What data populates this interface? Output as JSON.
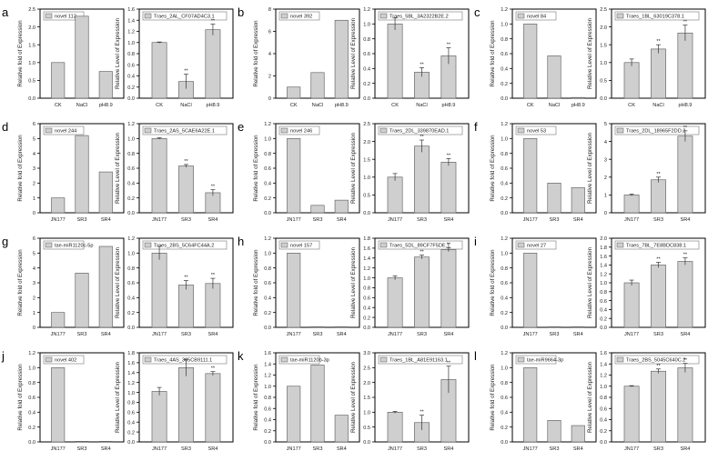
{
  "figure": {
    "panel_letters": [
      "a",
      "b",
      "c",
      "d",
      "e",
      "f",
      "g",
      "h",
      "i",
      "j",
      "k",
      "l"
    ],
    "ylabel_left": "Relative fold of Expression",
    "ylabel_right": "Relative Level of Expression"
  },
  "chart_data": [
    {
      "panel": "a",
      "side": "left",
      "type": "bar",
      "legend": "novel 112",
      "ylabel": "Relative fold of Expression",
      "categories": [
        "CK",
        "NaCl",
        "pH8.9"
      ],
      "values": [
        1.0,
        2.3,
        0.75
      ],
      "ylim": [
        0,
        2.5
      ],
      "yticks": [
        "0.0",
        "0.5",
        "1.0",
        "1.5",
        "2.0",
        "2.5"
      ],
      "errors": [
        0,
        0,
        0
      ],
      "sig": [
        "",
        "",
        ""
      ]
    },
    {
      "panel": "a",
      "side": "right",
      "type": "bar",
      "legend": "Traes_2AL_CF07AD4C3.1",
      "ylabel": "Relative Level of Expression",
      "categories": [
        "CK",
        "NaCl",
        "pH8.9"
      ],
      "values": [
        1.0,
        0.3,
        1.23
      ],
      "ylim": [
        0,
        1.6
      ],
      "yticks": [
        "0.0",
        "0.2",
        "0.4",
        "0.6",
        "0.8",
        "1.0",
        "1.2",
        "1.4",
        "1.6"
      ],
      "errors": [
        0.01,
        0.13,
        0.1
      ],
      "sig": [
        "",
        "**",
        "**"
      ]
    },
    {
      "panel": "b",
      "side": "left",
      "type": "bar",
      "legend": "novel 392",
      "ylabel": "Relative fold of Expression",
      "categories": [
        "CK",
        "NaCl",
        "pH8.9"
      ],
      "values": [
        1.0,
        2.3,
        7.0
      ],
      "ylim": [
        0,
        8
      ],
      "yticks": [
        "0",
        "2",
        "4",
        "6",
        "8"
      ],
      "errors": [
        0,
        0,
        0
      ],
      "sig": [
        "",
        "",
        ""
      ]
    },
    {
      "panel": "b",
      "side": "right",
      "type": "bar",
      "legend": "Traes_5BL_3A2322B2E.2",
      "ylabel": "Relative Level of Expression",
      "categories": [
        "CK",
        "NaCl",
        "pH8.9"
      ],
      "values": [
        1.0,
        0.35,
        0.57
      ],
      "ylim": [
        0,
        1.2
      ],
      "yticks": [
        "0.0",
        "0.2",
        "0.4",
        "0.6",
        "0.8",
        "1.0",
        "1.2"
      ],
      "errors": [
        0.08,
        0.06,
        0.11
      ],
      "sig": [
        "",
        "**",
        "**"
      ]
    },
    {
      "panel": "c",
      "side": "left",
      "type": "bar",
      "legend": "novel 84",
      "ylabel": "Relative fold of Expression",
      "categories": [
        "CK",
        "NaCl",
        "pH8.9"
      ],
      "values": [
        1.0,
        0.57,
        0.01
      ],
      "ylim": [
        0,
        1.2
      ],
      "yticks": [
        "0.0",
        "0.2",
        "0.4",
        "0.6",
        "0.8",
        "1.0",
        "1.2"
      ],
      "errors": [
        0,
        0,
        0
      ],
      "sig": [
        "",
        "",
        ""
      ]
    },
    {
      "panel": "c",
      "side": "right",
      "type": "bar",
      "legend": "Traes_1BL_63019C378.1",
      "ylabel": "Relative Level of Expression",
      "categories": [
        "CK",
        "NaCl",
        "pH8.9"
      ],
      "values": [
        1.0,
        1.38,
        1.83
      ],
      "ylim": [
        0,
        2.5
      ],
      "yticks": [
        "0.0",
        "0.5",
        "1.0",
        "1.5",
        "2.0",
        "2.5"
      ],
      "errors": [
        0.1,
        0.12,
        0.22
      ],
      "sig": [
        "",
        "**",
        "**"
      ]
    },
    {
      "panel": "d",
      "side": "left",
      "type": "bar",
      "legend": "novel 244",
      "ylabel": "Relative fold of Expression",
      "categories": [
        "JN177",
        "SR3",
        "SR4"
      ],
      "values": [
        1.0,
        5.2,
        2.75
      ],
      "ylim": [
        0,
        6
      ],
      "yticks": [
        "0",
        "1",
        "2",
        "3",
        "4",
        "5",
        "6"
      ],
      "errors": [
        0,
        0,
        0
      ],
      "sig": [
        "",
        "",
        ""
      ]
    },
    {
      "panel": "d",
      "side": "right",
      "type": "bar",
      "legend": "Traes_2AS_5CAE6A22E.1",
      "ylabel": "Relative Level of Expression",
      "categories": [
        "JN177",
        "SR3",
        "SR4"
      ],
      "values": [
        1.0,
        0.63,
        0.27
      ],
      "ylim": [
        0,
        1.2
      ],
      "yticks": [
        "0.0",
        "0.2",
        "0.4",
        "0.6",
        "0.8",
        "1.0",
        "1.2"
      ],
      "errors": [
        0.01,
        0.02,
        0.04
      ],
      "sig": [
        "",
        "**",
        "**"
      ]
    },
    {
      "panel": "e",
      "side": "left",
      "type": "bar",
      "legend": "novel 246",
      "ylabel": "Relative fold of Expression",
      "categories": [
        "JN177",
        "SR3",
        "SR4"
      ],
      "values": [
        1.0,
        0.1,
        0.17
      ],
      "ylim": [
        0,
        1.2
      ],
      "yticks": [
        "0.0",
        "0.2",
        "0.4",
        "0.6",
        "0.8",
        "1.0",
        "1.2"
      ],
      "errors": [
        0,
        0,
        0
      ],
      "sig": [
        "",
        "",
        ""
      ]
    },
    {
      "panel": "e",
      "side": "right",
      "type": "bar",
      "legend": "Traes_2DL_339870EAD.1",
      "ylabel": "Relative Level of Expression",
      "categories": [
        "JN177",
        "SR3",
        "SR4"
      ],
      "values": [
        1.0,
        1.87,
        1.42
      ],
      "ylim": [
        0,
        2.5
      ],
      "yticks": [
        "0.0",
        "0.5",
        "1.0",
        "1.5",
        "2.0",
        "2.5"
      ],
      "errors": [
        0.1,
        0.17,
        0.1
      ],
      "sig": [
        "",
        "**",
        "**"
      ]
    },
    {
      "panel": "f",
      "side": "left",
      "type": "bar",
      "legend": "novel 53",
      "ylabel": "Relative fold of Expression",
      "categories": [
        "JN177",
        "SR3",
        "SR4"
      ],
      "values": [
        1.0,
        0.4,
        0.34
      ],
      "ylim": [
        0,
        1.2
      ],
      "yticks": [
        "0.0",
        "0.2",
        "0.4",
        "0.6",
        "0.8",
        "1.0",
        "1.2"
      ],
      "errors": [
        0,
        0,
        0
      ],
      "sig": [
        "",
        "",
        ""
      ]
    },
    {
      "panel": "f",
      "side": "right",
      "type": "bar",
      "legend": "Traes_2DL_18965F2DD.2",
      "ylabel": "Relative Level of Expression",
      "categories": [
        "JN177",
        "SR3",
        "SR4"
      ],
      "values": [
        1.0,
        1.85,
        4.3
      ],
      "ylim": [
        0,
        5
      ],
      "yticks": [
        "0",
        "1",
        "2",
        "3",
        "4",
        "5"
      ],
      "errors": [
        0.05,
        0.15,
        0.3
      ],
      "sig": [
        "",
        "**",
        "**"
      ]
    },
    {
      "panel": "g",
      "side": "left",
      "type": "bar",
      "legend": "tae-miR1120c-5p",
      "ylabel": "Relative fold of Expression",
      "categories": [
        "JN177",
        "SR3",
        "SR4"
      ],
      "values": [
        1.0,
        3.65,
        5.45
      ],
      "ylim": [
        0,
        6
      ],
      "yticks": [
        "0",
        "1",
        "2",
        "3",
        "4",
        "5",
        "6"
      ],
      "errors": [
        0,
        0,
        0
      ],
      "sig": [
        "",
        "",
        ""
      ]
    },
    {
      "panel": "g",
      "side": "right",
      "type": "bar",
      "legend": "Traes_2BS_5C64FC44A.2",
      "ylabel": "Relative Level of Expression",
      "categories": [
        "JN177",
        "SR3",
        "SR4"
      ],
      "values": [
        1.0,
        0.57,
        0.59
      ],
      "ylim": [
        0,
        1.2
      ],
      "yticks": [
        "0.0",
        "0.2",
        "0.4",
        "0.6",
        "0.8",
        "1.0",
        "1.2"
      ],
      "errors": [
        0.09,
        0.06,
        0.07
      ],
      "sig": [
        "",
        "**",
        "**"
      ]
    },
    {
      "panel": "h",
      "side": "left",
      "type": "bar",
      "legend": "novel 157",
      "ylabel": "Relative fold of Expression",
      "categories": [
        "JN177",
        "SR3",
        "SR4"
      ],
      "values": [
        1.0,
        0.005,
        0.005
      ],
      "ylim": [
        0,
        1.2
      ],
      "yticks": [
        "0.0",
        "0.2",
        "0.4",
        "0.6",
        "0.8",
        "1.0",
        "1.2"
      ],
      "errors": [
        0,
        0,
        0
      ],
      "sig": [
        "",
        "",
        ""
      ]
    },
    {
      "panel": "h",
      "side": "right",
      "type": "bar",
      "legend": "Traes_5DL_89CF7F5DE.1",
      "ylabel": "Relative Level of Expression",
      "categories": [
        "JN177",
        "SR3",
        "SR4"
      ],
      "values": [
        1.0,
        1.42,
        1.57
      ],
      "ylim": [
        0,
        1.8
      ],
      "yticks": [
        "0.0",
        "0.2",
        "0.4",
        "0.6",
        "0.8",
        "1.0",
        "1.2",
        "1.4",
        "1.6",
        "1.8"
      ],
      "errors": [
        0.04,
        0.04,
        0.04
      ],
      "sig": [
        "",
        "**",
        "**"
      ]
    },
    {
      "panel": "i",
      "side": "left",
      "type": "bar",
      "legend": "novel 27",
      "ylabel": "Relative fold of Expression",
      "categories": [
        "JN177",
        "SR3",
        "SR4"
      ],
      "values": [
        1.0,
        0.005,
        0.005
      ],
      "ylim": [
        0,
        1.2
      ],
      "yticks": [
        "0.0",
        "0.2",
        "0.4",
        "0.6",
        "0.8",
        "1.0",
        "1.2"
      ],
      "errors": [
        0,
        0,
        0
      ],
      "sig": [
        "",
        "",
        ""
      ]
    },
    {
      "panel": "i",
      "side": "right",
      "type": "bar",
      "legend": "Traes_7BL_7E8BDC838.1",
      "ylabel": "Relative Level of Expression",
      "categories": [
        "JN177",
        "SR3",
        "SR4"
      ],
      "values": [
        1.0,
        1.4,
        1.48
      ],
      "ylim": [
        0,
        2.0
      ],
      "yticks": [
        "0.0",
        "0.2",
        "0.4",
        "0.6",
        "0.8",
        "1.0",
        "1.2",
        "1.4",
        "1.6",
        "1.8",
        "2.0"
      ],
      "errors": [
        0.06,
        0.06,
        0.08
      ],
      "sig": [
        "",
        "**",
        "**"
      ]
    },
    {
      "panel": "j",
      "side": "left",
      "type": "bar",
      "legend": "novel 402",
      "ylabel": "Relative fold of Expression",
      "categories": [
        "JN177",
        "SR3",
        "SR4"
      ],
      "values": [
        1.0,
        0.003,
        0.003
      ],
      "ylim": [
        0,
        1.2
      ],
      "yticks": [
        "0.0",
        "0.2",
        "0.4",
        "0.6",
        "0.8",
        "1.0",
        "1.2"
      ],
      "errors": [
        0,
        0,
        0
      ],
      "sig": [
        "",
        "",
        ""
      ]
    },
    {
      "panel": "j",
      "side": "right",
      "type": "bar",
      "legend": "Traes_4AS_365CB9111.1",
      "ylabel": "Relative Level of Expression",
      "categories": [
        "JN177",
        "SR3",
        "SR4"
      ],
      "values": [
        1.02,
        1.5,
        1.38
      ],
      "ylim": [
        0,
        1.8
      ],
      "yticks": [
        "0.0",
        "0.2",
        "0.4",
        "0.6",
        "0.8",
        "1.0",
        "1.2",
        "1.4",
        "1.6",
        "1.8"
      ],
      "errors": [
        0.08,
        0.17,
        0.04
      ],
      "sig": [
        "",
        "",
        "**"
      ]
    },
    {
      "panel": "k",
      "side": "left",
      "type": "bar",
      "legend": "tae-miR1120b-3p",
      "ylabel": "Relative fold of Expression",
      "categories": [
        "JN177",
        "SR3",
        "SR4"
      ],
      "values": [
        1.0,
        1.38,
        0.48
      ],
      "ylim": [
        0,
        1.6
      ],
      "yticks": [
        "0.0",
        "0.2",
        "0.4",
        "0.6",
        "0.8",
        "1.0",
        "1.2",
        "1.4",
        "1.6"
      ],
      "errors": [
        0,
        0,
        0
      ],
      "sig": [
        "",
        "",
        ""
      ]
    },
    {
      "panel": "k",
      "side": "right",
      "type": "bar",
      "legend": "Traes_1BL_A81E91163.1",
      "ylabel": "Relative Level of Expression",
      "categories": [
        "JN177",
        "SR3",
        "SR4"
      ],
      "values": [
        1.0,
        0.65,
        2.1
      ],
      "ylim": [
        0,
        3.0
      ],
      "yticks": [
        "0.0",
        "0.5",
        "1.0",
        "1.5",
        "2.0",
        "2.5",
        "3.0"
      ],
      "errors": [
        0.03,
        0.25,
        0.45
      ],
      "sig": [
        "",
        "**",
        "**"
      ]
    },
    {
      "panel": "l",
      "side": "left",
      "type": "bar",
      "legend": "tae-miR9664-3p",
      "ylabel": "Relative fold of Expression",
      "categories": [
        "JN177",
        "SR3",
        "SR4"
      ],
      "values": [
        1.0,
        0.29,
        0.22
      ],
      "ylim": [
        0,
        1.2
      ],
      "yticks": [
        "0.0",
        "0.2",
        "0.4",
        "0.6",
        "0.8",
        "1.0",
        "1.2"
      ],
      "errors": [
        0,
        0,
        0
      ],
      "sig": [
        "",
        "",
        ""
      ]
    },
    {
      "panel": "l",
      "side": "right",
      "type": "bar",
      "legend": "Traes_2BS_5045C640C.2",
      "ylabel": "Relative Level of Expression",
      "categories": [
        "JN177",
        "SR3",
        "SR4"
      ],
      "values": [
        1.0,
        1.27,
        1.33
      ],
      "ylim": [
        0,
        1.6
      ],
      "yticks": [
        "0.0",
        "0.2",
        "0.4",
        "0.6",
        "0.8",
        "1.0",
        "1.2",
        "1.4",
        "1.6"
      ],
      "errors": [
        0.01,
        0.04,
        0.08
      ],
      "sig": [
        "",
        "**",
        "**"
      ]
    }
  ],
  "colors": {
    "bar_fill": "#cfcfcf",
    "bar_stroke": "#555555",
    "axis": "#000000",
    "text": "#222222",
    "legend_swatch": "#cfcfcf"
  }
}
